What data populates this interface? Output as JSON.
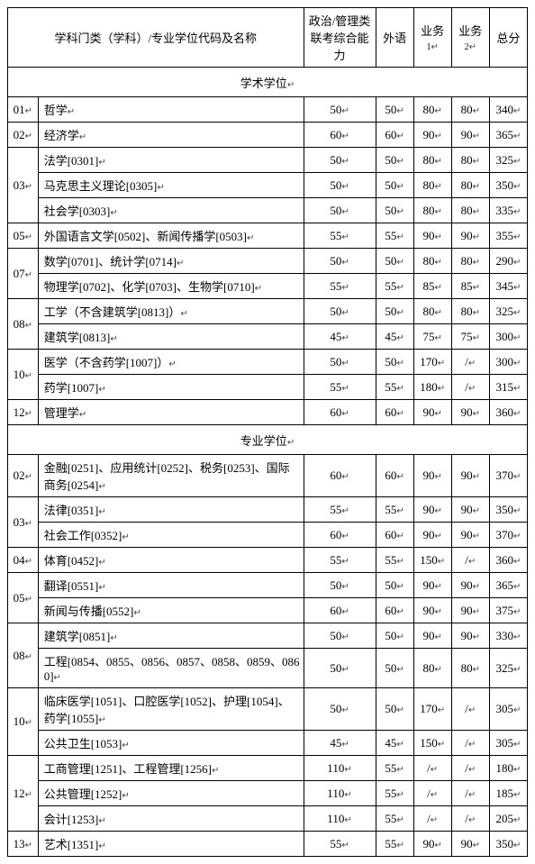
{
  "headers": {
    "col_name": "学科门类（学科）/专业学位代码及名称",
    "col_politics": "政治/管理类联考综合能力",
    "col_foreign": "外语",
    "col_biz1": "业务",
    "col_biz1_sub": "1",
    "col_biz2": "业务",
    "col_biz2_sub": "2",
    "col_total": "总分"
  },
  "section1": "学术学位",
  "section2": "专业学位",
  "marker": "↵",
  "rows1": [
    {
      "code": "01",
      "name": "哲学",
      "s": [
        "50",
        "50",
        "80",
        "80",
        "340"
      ],
      "span": 1
    },
    {
      "code": "02",
      "name": "经济学",
      "s": [
        "60",
        "60",
        "90",
        "90",
        "365"
      ],
      "span": 1
    },
    {
      "code": "03",
      "name": "法学[0301]",
      "s": [
        "50",
        "50",
        "80",
        "80",
        "325"
      ],
      "span": 3
    },
    {
      "code": "",
      "name": "马克思主义理论[0305]",
      "s": [
        "50",
        "50",
        "80",
        "80",
        "350"
      ],
      "span": 0
    },
    {
      "code": "",
      "name": "社会学[0303]",
      "s": [
        "50",
        "50",
        "80",
        "80",
        "335"
      ],
      "span": 0
    },
    {
      "code": "05",
      "name": "外国语言文学[0502]、新闻传播学[0503]",
      "s": [
        "55",
        "55",
        "90",
        "90",
        "355"
      ],
      "span": 1
    },
    {
      "code": "07",
      "name": "数学[0701]、统计学[0714]",
      "s": [
        "50",
        "50",
        "80",
        "80",
        "290"
      ],
      "span": 2
    },
    {
      "code": "",
      "name": "物理学[0702]、化学[0703]、生物学[0710]",
      "s": [
        "55",
        "55",
        "85",
        "85",
        "345"
      ],
      "span": 0
    },
    {
      "code": "08",
      "name": "工学（不含建筑学[0813]）",
      "s": [
        "50",
        "50",
        "80",
        "80",
        "325"
      ],
      "span": 2
    },
    {
      "code": "",
      "name": "建筑学[0813]",
      "s": [
        "45",
        "45",
        "75",
        "75",
        "300"
      ],
      "span": 0
    },
    {
      "code": "10",
      "name": "医学（不含药学[1007]）",
      "s": [
        "50",
        "50",
        "170",
        "/",
        "300"
      ],
      "span": 2
    },
    {
      "code": "",
      "name": "药学[1007]",
      "s": [
        "55",
        "55",
        "180",
        "/",
        "315"
      ],
      "span": 0
    },
    {
      "code": "12",
      "name": "管理学",
      "s": [
        "60",
        "60",
        "90",
        "90",
        "360"
      ],
      "span": 1
    }
  ],
  "rows2": [
    {
      "code": "02",
      "name": "金融[0251]、应用统计[0252]、税务[0253]、国际商务[0254]",
      "s": [
        "60",
        "60",
        "90",
        "90",
        "370"
      ],
      "span": 1
    },
    {
      "code": "03",
      "name": "法律[0351]",
      "s": [
        "55",
        "55",
        "90",
        "90",
        "350"
      ],
      "span": 2
    },
    {
      "code": "",
      "name": "社会工作[0352]",
      "s": [
        "60",
        "60",
        "90",
        "90",
        "370"
      ],
      "span": 0
    },
    {
      "code": "04",
      "name": "体育[0452]",
      "s": [
        "55",
        "55",
        "150",
        "/",
        "360"
      ],
      "span": 1
    },
    {
      "code": "05",
      "name": "翻译[0551]",
      "s": [
        "50",
        "50",
        "90",
        "90",
        "365"
      ],
      "span": 2
    },
    {
      "code": "",
      "name": "新闻与传播[0552]",
      "s": [
        "60",
        "60",
        "90",
        "90",
        "375"
      ],
      "span": 0
    },
    {
      "code": "08",
      "name": "建筑学[0851]",
      "s": [
        "50",
        "50",
        "90",
        "90",
        "330"
      ],
      "span": 2
    },
    {
      "code": "",
      "name": "工程[0854、0855、0856、0857、0858、0859、0860]",
      "s": [
        "50",
        "50",
        "80",
        "80",
        "325"
      ],
      "span": 0
    },
    {
      "code": "10",
      "name": "临床医学[1051]、口腔医学[1052]、护理[1054]、药学[1055]",
      "s": [
        "50",
        "50",
        "170",
        "/",
        "305"
      ],
      "span": 2
    },
    {
      "code": "",
      "name": "公共卫生[1053]",
      "s": [
        "45",
        "45",
        "150",
        "/",
        "305"
      ],
      "span": 0
    },
    {
      "code": "12",
      "name": "工商管理[1251]、工程管理[1256]",
      "s": [
        "110",
        "55",
        "/",
        "/",
        "180"
      ],
      "span": 3
    },
    {
      "code": "",
      "name": "公共管理[1252]",
      "s": [
        "110",
        "55",
        "/",
        "/",
        "185"
      ],
      "span": 0
    },
    {
      "code": "",
      "name": "会计[1253]",
      "s": [
        "110",
        "55",
        "/",
        "/",
        "205"
      ],
      "span": 0
    },
    {
      "code": "13",
      "name": "艺术[1351]",
      "s": [
        "55",
        "55",
        "90",
        "90",
        "350"
      ],
      "span": 1
    }
  ]
}
